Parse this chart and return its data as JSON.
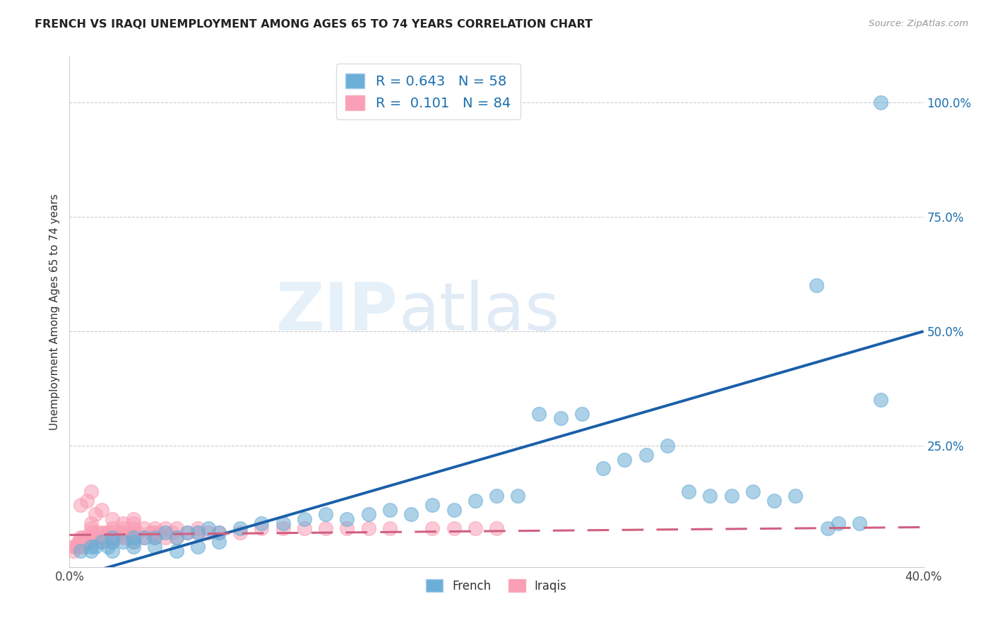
{
  "title": "FRENCH VS IRAQI UNEMPLOYMENT AMONG AGES 65 TO 74 YEARS CORRELATION CHART",
  "source": "Source: ZipAtlas.com",
  "ylabel": "Unemployment Among Ages 65 to 74 years",
  "xlim": [
    0.0,
    0.4
  ],
  "ylim": [
    -0.015,
    1.1
  ],
  "french_color": "#6baed6",
  "iraqi_color": "#fa9fb5",
  "french_trend_color": "#1a5fa8",
  "iraqi_trend_color": "#d06080",
  "french_R": "0.643",
  "french_N": "58",
  "iraqi_R": "0.101",
  "iraqi_N": "84",
  "legend_french": "French",
  "legend_iraqi": "Iraqis",
  "watermark": "ZIPatlas",
  "french_x": [
    0.005,
    0.01,
    0.012,
    0.015,
    0.018,
    0.02,
    0.02,
    0.025,
    0.03,
    0.03,
    0.035,
    0.04,
    0.045,
    0.05,
    0.055,
    0.06,
    0.065,
    0.07,
    0.08,
    0.09,
    0.1,
    0.11,
    0.12,
    0.13,
    0.14,
    0.15,
    0.16,
    0.17,
    0.18,
    0.19,
    0.2,
    0.21,
    0.22,
    0.23,
    0.24,
    0.25,
    0.26,
    0.27,
    0.28,
    0.29,
    0.3,
    0.31,
    0.32,
    0.33,
    0.34,
    0.35,
    0.355,
    0.36,
    0.37,
    0.38,
    0.38,
    0.01,
    0.02,
    0.03,
    0.04,
    0.05,
    0.06,
    0.07
  ],
  "french_y": [
    0.02,
    0.03,
    0.03,
    0.04,
    0.03,
    0.04,
    0.05,
    0.04,
    0.04,
    0.05,
    0.05,
    0.05,
    0.06,
    0.05,
    0.06,
    0.06,
    0.07,
    0.06,
    0.07,
    0.08,
    0.08,
    0.09,
    0.1,
    0.09,
    0.1,
    0.11,
    0.1,
    0.12,
    0.11,
    0.13,
    0.14,
    0.14,
    0.32,
    0.31,
    0.32,
    0.2,
    0.22,
    0.23,
    0.25,
    0.15,
    0.14,
    0.14,
    0.15,
    0.13,
    0.14,
    0.6,
    0.07,
    0.08,
    0.08,
    0.35,
    1.0,
    0.02,
    0.02,
    0.03,
    0.03,
    0.02,
    0.03,
    0.04
  ],
  "iraqi_x": [
    0.002,
    0.003,
    0.004,
    0.005,
    0.005,
    0.006,
    0.007,
    0.008,
    0.008,
    0.009,
    0.01,
    0.01,
    0.01,
    0.01,
    0.01,
    0.012,
    0.013,
    0.015,
    0.015,
    0.015,
    0.016,
    0.017,
    0.018,
    0.018,
    0.02,
    0.02,
    0.02,
    0.02,
    0.022,
    0.023,
    0.025,
    0.025,
    0.025,
    0.027,
    0.028,
    0.03,
    0.03,
    0.03,
    0.03,
    0.03,
    0.032,
    0.035,
    0.035,
    0.038,
    0.04,
    0.04,
    0.04,
    0.042,
    0.045,
    0.045,
    0.048,
    0.05,
    0.05,
    0.055,
    0.06,
    0.06,
    0.065,
    0.07,
    0.08,
    0.09,
    0.1,
    0.11,
    0.12,
    0.13,
    0.14,
    0.15,
    0.17,
    0.18,
    0.19,
    0.2,
    0.005,
    0.008,
    0.01,
    0.012,
    0.015,
    0.02,
    0.025,
    0.03,
    0.002,
    0.003,
    0.004,
    0.006,
    0.008,
    0.01
  ],
  "iraqi_y": [
    0.02,
    0.03,
    0.03,
    0.04,
    0.05,
    0.03,
    0.04,
    0.04,
    0.05,
    0.05,
    0.04,
    0.05,
    0.06,
    0.07,
    0.08,
    0.05,
    0.06,
    0.04,
    0.05,
    0.06,
    0.05,
    0.06,
    0.05,
    0.06,
    0.04,
    0.05,
    0.06,
    0.07,
    0.05,
    0.06,
    0.05,
    0.06,
    0.07,
    0.05,
    0.06,
    0.04,
    0.05,
    0.06,
    0.07,
    0.08,
    0.06,
    0.05,
    0.07,
    0.06,
    0.05,
    0.06,
    0.07,
    0.06,
    0.05,
    0.07,
    0.06,
    0.05,
    0.07,
    0.06,
    0.06,
    0.07,
    0.06,
    0.06,
    0.06,
    0.07,
    0.07,
    0.07,
    0.07,
    0.07,
    0.07,
    0.07,
    0.07,
    0.07,
    0.07,
    0.07,
    0.12,
    0.13,
    0.15,
    0.1,
    0.11,
    0.09,
    0.08,
    0.09,
    0.03,
    0.03,
    0.04,
    0.05,
    0.04,
    0.05
  ],
  "french_trend": [
    -0.04,
    0.5
  ],
  "iraqi_trend": [
    0.055,
    0.072
  ]
}
